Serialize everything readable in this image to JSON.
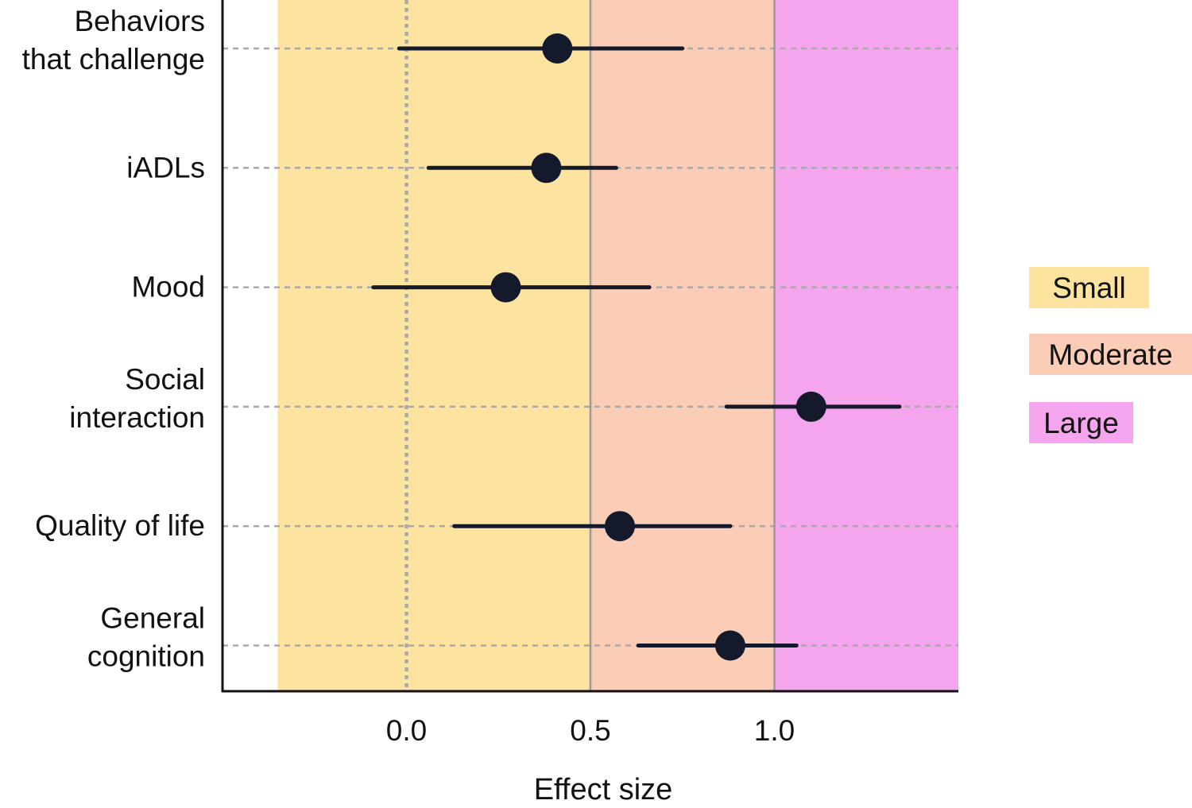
{
  "chart_data": {
    "type": "forest",
    "title": "",
    "xlabel": "Effect size",
    "ylabel": "",
    "xlim": [
      -0.5,
      1.5
    ],
    "xticks": [
      0.0,
      0.5,
      1.0
    ],
    "xtick_labels": [
      "0.0",
      "0.5",
      "1.0"
    ],
    "reference_line": 0.0,
    "categories": [
      {
        "label_lines": [
          "Behaviors",
          "that challenge"
        ],
        "estimate": 0.41,
        "ci_low": -0.02,
        "ci_high": 0.75
      },
      {
        "label_lines": [
          "iADLs"
        ],
        "estimate": 0.38,
        "ci_low": 0.06,
        "ci_high": 0.57
      },
      {
        "label_lines": [
          "Mood"
        ],
        "estimate": 0.27,
        "ci_low": -0.09,
        "ci_high": 0.66
      },
      {
        "label_lines": [
          "Social",
          "interaction"
        ],
        "estimate": 1.1,
        "ci_low": 0.87,
        "ci_high": 1.34
      },
      {
        "label_lines": [
          "Quality of life"
        ],
        "estimate": 0.58,
        "ci_low": 0.13,
        "ci_high": 0.88
      },
      {
        "label_lines": [
          "General",
          "cognition"
        ],
        "estimate": 0.88,
        "ci_low": 0.63,
        "ci_high": 1.06
      }
    ],
    "effect_bands": [
      {
        "label": "Small",
        "from": -0.35,
        "to": 0.5,
        "color": "#fce3a0"
      },
      {
        "label": "Moderate",
        "from": 0.5,
        "to": 1.0,
        "color": "#fbccb6"
      },
      {
        "label": "Large",
        "from": 1.0,
        "to": 1.5,
        "color": "#f5a5ee"
      }
    ],
    "band_boundaries": [
      0.5,
      1.0
    ],
    "legend": {
      "placement": "right",
      "entries": [
        "Small",
        "Moderate",
        "Large"
      ]
    },
    "colors": {
      "point": "#141a2b",
      "gridline": "#a9a9a9",
      "boundary": "#9a9a9a",
      "axis": "#111111"
    }
  }
}
